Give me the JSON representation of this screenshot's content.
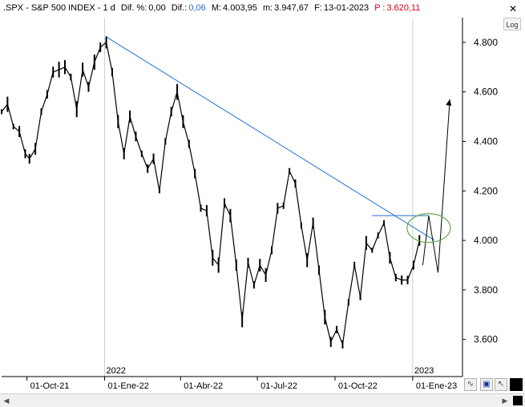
{
  "header": {
    "symbol": ".SPX - S&P 500 INDEX - 1 d",
    "dif_pct_label": "Dif. %:",
    "dif_pct_value": "0,00",
    "dif_label": "Dif.:",
    "dif_value": "0,06",
    "max_label": "M:",
    "max_value": "4.003,95",
    "min_label": "m:",
    "min_value": "3.947,67",
    "date_label": "F:",
    "date_value": "13-01-2023",
    "price_label": "P :",
    "price_value": "3.620,11",
    "close_glyph": "✕"
  },
  "controls": {
    "log_label": "Log",
    "wave_icon": "wave-icon",
    "save_icon": "save-icon",
    "pointer_icon": "pointer-icon",
    "square_icon": "square-icon"
  },
  "colors": {
    "price": "#000000",
    "trendline": "#1f6fd1",
    "ellipse": "#6aa84f",
    "dif_value": "#1f6fd1",
    "price_value": "#e0001b"
  },
  "chart_data": {
    "type": "line",
    "title": "",
    "xlabel": "",
    "ylabel": "",
    "ylim": [
      3450,
      4900
    ],
    "y_ticks": [
      "3.600",
      "3.800",
      "4.000",
      "4.200",
      "4.400",
      "4.600",
      "4.800"
    ],
    "y_tick_values": [
      3600,
      3800,
      4000,
      4200,
      4400,
      4600,
      4800
    ],
    "x_ticks": [
      "01-Oct-21",
      "01-Ene-22",
      "01-Abr-22",
      "01-Jul-22",
      "01-Oct-22",
      "01-Ene-23"
    ],
    "x_tick_dates": [
      "2021-10-01",
      "2022-01-01",
      "2022-04-01",
      "2022-07-01",
      "2022-10-01",
      "2023-01-01"
    ],
    "year_labels": [
      {
        "label": "2022",
        "date": "2022-01-01"
      },
      {
        "label": "2023",
        "date": "2023-01-01"
      }
    ],
    "series": [
      {
        "values": [
          [
            "2021-09-01",
            4520
          ],
          [
            "2021-09-08",
            4550
          ],
          [
            "2021-09-15",
            4460
          ],
          [
            "2021-09-22",
            4440
          ],
          [
            "2021-09-29",
            4350
          ],
          [
            "2021-10-04",
            4330
          ],
          [
            "2021-10-11",
            4370
          ],
          [
            "2021-10-18",
            4520
          ],
          [
            "2021-10-25",
            4590
          ],
          [
            "2021-11-01",
            4680
          ],
          [
            "2021-11-08",
            4690
          ],
          [
            "2021-11-15",
            4700
          ],
          [
            "2021-11-22",
            4660
          ],
          [
            "2021-11-29",
            4530
          ],
          [
            "2021-12-06",
            4690
          ],
          [
            "2021-12-13",
            4620
          ],
          [
            "2021-12-20",
            4720
          ],
          [
            "2021-12-27",
            4780
          ],
          [
            "2022-01-03",
            4800
          ],
          [
            "2022-01-10",
            4680
          ],
          [
            "2022-01-17",
            4480
          ],
          [
            "2022-01-24",
            4350
          ],
          [
            "2022-01-31",
            4500
          ],
          [
            "2022-02-07",
            4420
          ],
          [
            "2022-02-14",
            4350
          ],
          [
            "2022-02-21",
            4290
          ],
          [
            "2022-02-28",
            4330
          ],
          [
            "2022-03-07",
            4200
          ],
          [
            "2022-03-14",
            4400
          ],
          [
            "2022-03-21",
            4520
          ],
          [
            "2022-03-28",
            4600
          ],
          [
            "2022-04-04",
            4480
          ],
          [
            "2022-04-11",
            4390
          ],
          [
            "2022-04-18",
            4270
          ],
          [
            "2022-04-25",
            4130
          ],
          [
            "2022-05-02",
            4120
          ],
          [
            "2022-05-09",
            3930
          ],
          [
            "2022-05-16",
            3900
          ],
          [
            "2022-05-23",
            4150
          ],
          [
            "2022-05-30",
            4100
          ],
          [
            "2022-06-06",
            3900
          ],
          [
            "2022-06-13",
            3680
          ],
          [
            "2022-06-20",
            3910
          ],
          [
            "2022-06-27",
            3820
          ],
          [
            "2022-07-04",
            3900
          ],
          [
            "2022-07-11",
            3860
          ],
          [
            "2022-07-18",
            3960
          ],
          [
            "2022-07-25",
            4130
          ],
          [
            "2022-08-01",
            4140
          ],
          [
            "2022-08-08",
            4280
          ],
          [
            "2022-08-15",
            4230
          ],
          [
            "2022-08-22",
            4060
          ],
          [
            "2022-08-29",
            3920
          ],
          [
            "2022-09-05",
            4070
          ],
          [
            "2022-09-12",
            3880
          ],
          [
            "2022-09-19",
            3690
          ],
          [
            "2022-09-26",
            3590
          ],
          [
            "2022-10-03",
            3640
          ],
          [
            "2022-10-10",
            3580
          ],
          [
            "2022-10-17",
            3750
          ],
          [
            "2022-10-24",
            3900
          ],
          [
            "2022-10-31",
            3770
          ],
          [
            "2022-11-07",
            3990
          ],
          [
            "2022-11-14",
            3960
          ],
          [
            "2022-11-21",
            4020
          ],
          [
            "2022-11-28",
            4070
          ],
          [
            "2022-12-05",
            3930
          ],
          [
            "2022-12-12",
            3850
          ],
          [
            "2022-12-19",
            3840
          ],
          [
            "2022-12-26",
            3840
          ],
          [
            "2023-01-02",
            3900
          ],
          [
            "2023-01-09",
            4000
          ]
        ]
      }
    ],
    "trendline": {
      "from": [
        "2022-01-04",
        4820
      ],
      "to": [
        "2023-01-27",
        4000
      ]
    },
    "resistance_line": {
      "from": [
        "2022-11-14",
        4100
      ],
      "to": [
        "2023-01-20",
        4100
      ]
    },
    "projection_path": [
      [
        "2023-01-13",
        3900
      ],
      [
        "2023-01-20",
        4100
      ],
      [
        "2023-01-31",
        3870
      ],
      [
        "2023-02-14",
        4570
      ]
    ],
    "highlight_ellipse": {
      "center": [
        "2023-01-20",
        4050
      ],
      "note": ""
    }
  }
}
